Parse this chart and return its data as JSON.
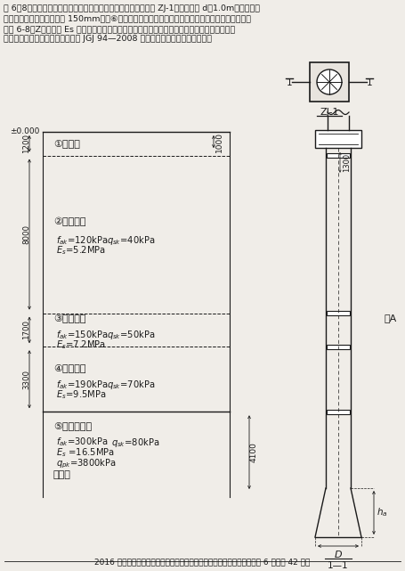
{
  "bg_color": "#f0ede8",
  "line_color": "#1a1a1a",
  "header": [
    "题 6～8：某多层框架结构，拟采用一柱一桩人工挖孔框框基基础 ZJ-1，框身内径 d＝1.0m，护壁采用",
    "振捏密实的混凝土，厚度为 150mm，以⑥层硬塑状粘土为框端持力层，基础剪面及地基图层相关参数",
    "见图 6-8（Z）（图中 Es 为土的自重压力至土的自重压力与附加压力之和的压力段的压缩模量）",
    "提示：根据《建筑框基技术规范》 JGJ 94—2008 作答；粉质粘土可按粘土考虑。"
  ],
  "caption": "图 6-8（Z）",
  "footer": "2016 年度全国一级注册结构工程师执业资格考试专业考试试卷（下午）第 6 页（共 42 页）",
  "layer_depths": [
    1200,
    8000,
    1700,
    3300,
    4100
  ],
  "layer_labels": [
    "①素填土",
    "②粉质粘土",
    "③粉质粘土",
    "④粉质粘土",
    "⑤硬塑状粘土"
  ],
  "layer_fak": [
    "",
    "120kPa",
    "150kPa",
    "190kPa",
    "300kPa"
  ],
  "layer_Es": [
    "",
    "5.2MPa",
    "7.2MPa",
    "9.5MPa",
    "16.5MPa"
  ],
  "layer_qsk": [
    "",
    "40kPa",
    "50kPa",
    "70kPa",
    "80kPa"
  ],
  "layer_qpk": [
    "",
    "",
    "",
    "",
    "3800kPa"
  ],
  "dim_1000": 1000,
  "dim_1300": 1300
}
